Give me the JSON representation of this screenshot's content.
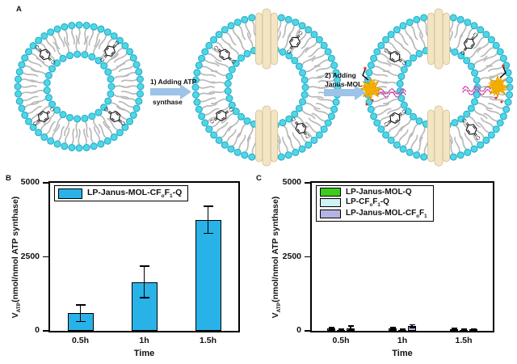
{
  "panels": {
    "a": "A",
    "b": "B",
    "c": "C"
  },
  "schematic": {
    "arrow1_line1": "1) Adding ATP",
    "arrow1_line2": "synthase",
    "arrow2_line1": "2) Adding",
    "arrow2_line2": "Janus-MOL",
    "colors": {
      "bead": "#4ed7e7",
      "bead_stroke": "#23a7c3",
      "tail": "#b9b9b9",
      "synthase": "#f3e5c3",
      "synthase_stroke": "#dcc69c",
      "arrow": "#9dc3e8",
      "quinone_line": "#111111",
      "janus": "#ffcc00",
      "janus_stroke": "#d89400",
      "janus_inner": "#f0a500",
      "mol_chain": "#cc3fa8",
      "red_dot": "#e03030"
    }
  },
  "chart_data": [
    {
      "panel": "B",
      "type": "bar",
      "categories": [
        "0.5h",
        "1h",
        "1.5h"
      ],
      "xlabel": "Time",
      "ylabel": "V_{ATP}(nmol/nmol ATP synthase)",
      "ylim": [
        0,
        5000
      ],
      "yticks": [
        0,
        2500,
        5000
      ],
      "grid": false,
      "legend_position": "top-left",
      "series": [
        {
          "label": "LP-Janus-MOL-CF_{o}F_{1}-Q",
          "color": "#29b2e8",
          "values": [
            600,
            1650,
            3750
          ],
          "errors": [
            300,
            550,
            480
          ]
        }
      ]
    },
    {
      "panel": "C",
      "type": "bar",
      "categories": [
        "0.5h",
        "1h",
        "1.5h"
      ],
      "xlabel": "Time",
      "ylabel": "V_{ATP}(nmol/nmol ATP synthase)",
      "ylim": [
        0,
        5000
      ],
      "yticks": [
        0,
        2500,
        5000
      ],
      "grid": false,
      "legend_position": "top-left",
      "series": [
        {
          "label": "LP-Janus-MOL-Q",
          "color": "#3dcb1d",
          "values": [
            80,
            80,
            60
          ],
          "errors": [
            55,
            45,
            40
          ]
        },
        {
          "label": "LP-CF_{o}F_{1}-Q",
          "color": "#cff2f2",
          "values": [
            35,
            35,
            40
          ],
          "errors": [
            25,
            25,
            30
          ]
        },
        {
          "label": "LP-Janus-MOL-CF_{o}F_{1}",
          "color": "#b5b3e4",
          "values": [
            95,
            160,
            50
          ],
          "errors": [
            85,
            70,
            35
          ]
        }
      ]
    }
  ]
}
